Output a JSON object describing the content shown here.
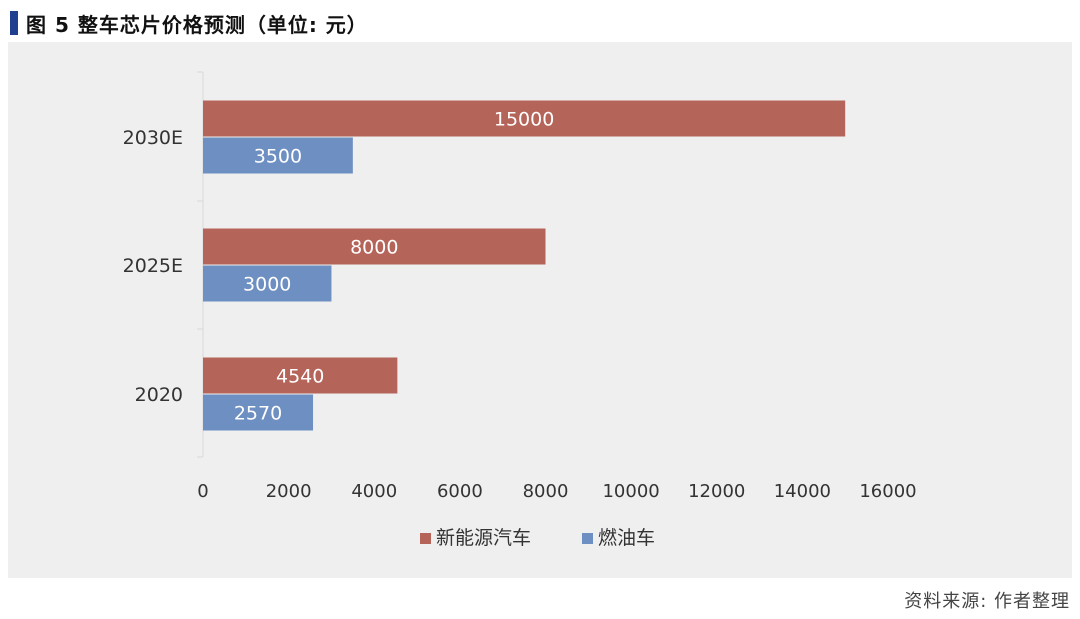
{
  "header": {
    "title": "图 5  整车芯片价格预测（单位: 元）"
  },
  "footer": {
    "source": "资料来源: 作者整理"
  },
  "colors": {
    "series_nev": "#b5645a",
    "series_ice": "#6e8fc2",
    "panel_bg": "#efefef",
    "title_marker": "#1f3f8f"
  },
  "chart_data": {
    "type": "bar",
    "orientation": "horizontal",
    "categories": [
      "2030E",
      "2025E",
      "2020"
    ],
    "series": [
      {
        "name": "新能源汽车",
        "values": [
          15000,
          8000,
          4540
        ]
      },
      {
        "name": "燃油车",
        "values": [
          3500,
          3000,
          2570
        ]
      }
    ],
    "xlim": [
      0,
      16000
    ],
    "xticks": [
      0,
      2000,
      4000,
      6000,
      8000,
      10000,
      12000,
      14000,
      16000
    ],
    "grid": false,
    "legend_position": "bottom",
    "data_labels": true
  }
}
